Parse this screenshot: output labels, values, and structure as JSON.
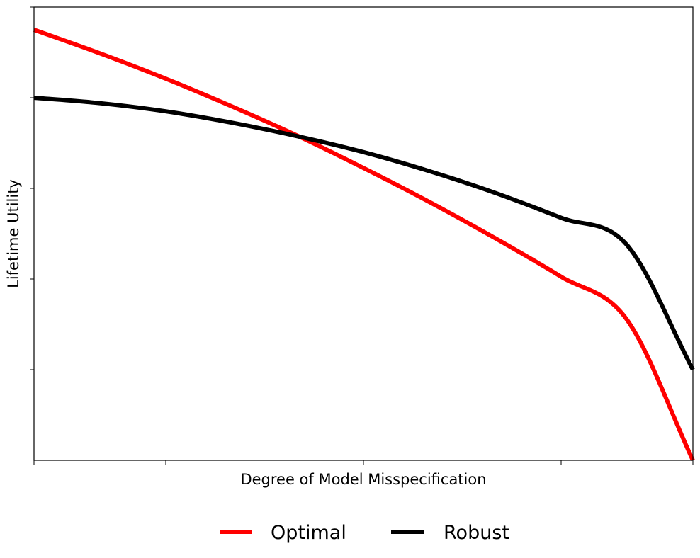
{
  "chart_data": {
    "type": "line",
    "xlabel": "Degree of Model Misspecification",
    "ylabel": "Lifetime Utility",
    "xlim": [
      0,
      1
    ],
    "ylim": [
      0,
      1
    ],
    "xtick_values": [
      0,
      0.2,
      0.5,
      0.8,
      1.0
    ],
    "ytick_values": [
      0.2,
      0.4,
      0.6,
      0.8,
      1.0
    ],
    "tick_labels_visible": false,
    "grid": false,
    "legend": "bottom-center",
    "series": [
      {
        "name": "Optimal",
        "color": "#ff0000",
        "x": [
          0,
          0.1,
          0.2,
          0.3,
          0.4,
          0.5,
          0.6,
          0.7,
          0.8,
          0.9,
          1.0
        ],
        "y": [
          0.95,
          0.898,
          0.842,
          0.781,
          0.716,
          0.645,
          0.57,
          0.49,
          0.405,
          0.31,
          0.0
        ]
      },
      {
        "name": "Robust",
        "color": "#000000",
        "x": [
          0,
          0.1,
          0.2,
          0.3,
          0.4,
          0.5,
          0.6,
          0.7,
          0.8,
          0.9,
          1.0
        ],
        "y": [
          0.8,
          0.788,
          0.77,
          0.745,
          0.715,
          0.68,
          0.638,
          0.59,
          0.535,
          0.475,
          0.2
        ]
      }
    ]
  }
}
